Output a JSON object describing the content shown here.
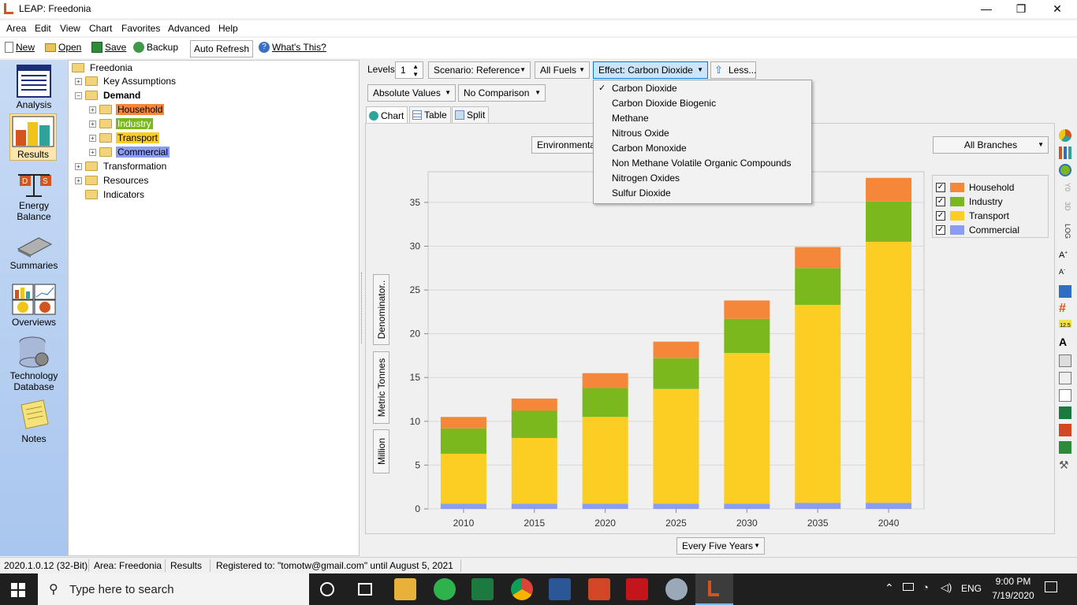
{
  "window": {
    "title": "LEAP: Freedonia",
    "minimize": "—",
    "restore": "❐",
    "close": "✕"
  },
  "menu": [
    "Area",
    "Edit",
    "View",
    "Chart",
    "Favorites",
    "Advanced",
    "Help"
  ],
  "toolbar": {
    "new": "New",
    "open": "Open",
    "save": "Save",
    "backup": "Backup",
    "auto_refresh": "Auto Refresh",
    "whats_this": "What's This?"
  },
  "nav": [
    {
      "label": "Analysis",
      "icon": "analysis-icon"
    },
    {
      "label": "Results",
      "icon": "results-icon",
      "selected": true
    },
    {
      "label": "Energy Balance",
      "icon": "energy-balance-icon"
    },
    {
      "label": "Summaries",
      "icon": "summaries-icon"
    },
    {
      "label": "Overviews",
      "icon": "overviews-icon"
    },
    {
      "label": "Technology Database",
      "icon": "technology-database-icon"
    },
    {
      "label": "Notes",
      "icon": "notes-icon"
    }
  ],
  "tree": {
    "root": "Freedonia",
    "items": [
      "Key Assumptions",
      "Demand",
      "Household",
      "Industry",
      "Transport",
      "Commercial",
      "Transformation",
      "Resources",
      "Indicators"
    ],
    "colors": {
      "household": "#f5873a",
      "industry": "#7ab81e",
      "transport": "#fccd22",
      "commercial": "#8b9cf4"
    }
  },
  "controls": {
    "levels_label": "Levels:",
    "levels_value": "1",
    "scenario": "Scenario: Reference",
    "fuels": "All Fuels",
    "effect": "Effect: Carbon Dioxide",
    "less": "Less...",
    "values": "Absolute Values",
    "comparison": "No Comparison",
    "environment": "Environmental",
    "branches": "All Branches",
    "interval": "Every Five Years"
  },
  "tabs": [
    "Chart",
    "Table",
    "Split"
  ],
  "vertical_tabs": [
    "Denominator..",
    "Metric Tonnes",
    "Million"
  ],
  "dropdown": {
    "items": [
      "Carbon Dioxide",
      "Carbon Dioxide Biogenic",
      "Methane",
      "Nitrous Oxide",
      "Carbon Monoxide",
      "Non Methane Volatile Organic Compounds",
      "Nitrogen Oxides",
      "Sulfur Dioxide"
    ],
    "checked_index": 0,
    "check_mark": "✓"
  },
  "chart_data": {
    "type": "bar",
    "stacked": true,
    "categories": [
      "2010",
      "2015",
      "2020",
      "2025",
      "2030",
      "2035",
      "2040"
    ],
    "series": [
      {
        "name": "Commercial",
        "color": "#8b9cf4",
        "values": [
          0.6,
          0.6,
          0.6,
          0.6,
          0.6,
          0.7,
          0.7
        ]
      },
      {
        "name": "Transport",
        "color": "#fccd22",
        "values": [
          5.7,
          7.5,
          9.9,
          13.1,
          17.2,
          22.6,
          29.8
        ]
      },
      {
        "name": "Industry",
        "color": "#7ab81e",
        "values": [
          2.9,
          3.1,
          3.3,
          3.5,
          3.9,
          4.2,
          4.6
        ]
      },
      {
        "name": "Household",
        "color": "#f5873a",
        "values": [
          1.3,
          1.4,
          1.7,
          1.9,
          2.1,
          2.4,
          2.7
        ]
      }
    ],
    "ylim": [
      0,
      38.5
    ],
    "yticks": [
      "0",
      "5",
      "10",
      "15",
      "20",
      "25",
      "30",
      "35"
    ],
    "legend": [
      "Household",
      "Industry",
      "Transport",
      "Commercial"
    ],
    "legend_position": "top-right",
    "grid": true
  },
  "status": {
    "version": "2020.1.0.12 (32-Bit)",
    "area": "Area: Freedonia",
    "view": "Results",
    "registered": "Registered to: \"tomotw@gmail.com\" until August 5, 2021"
  },
  "taskbar": {
    "search_placeholder": "Type here to search",
    "lang": "ENG",
    "time": "9:00 PM",
    "date": "7/19/2020"
  }
}
